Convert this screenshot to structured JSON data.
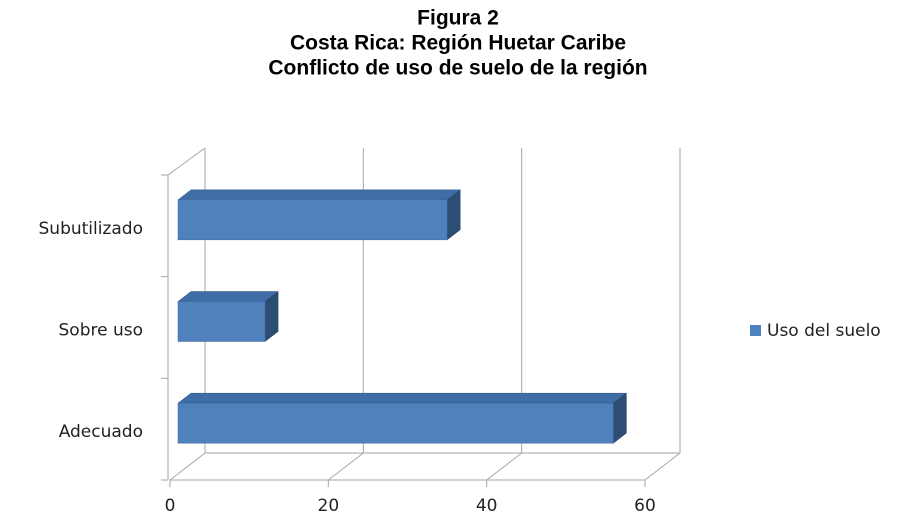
{
  "chart_data": {
    "type": "bar3d_horizontal",
    "title": [
      "Figura 2",
      "Costa Rica: Región Huetar Caribe",
      "Conflicto de uso de suelo de la región"
    ],
    "categories": [
      "Adecuado",
      "Sobre uso",
      "Subutilizado"
    ],
    "series": [
      {
        "name": "Uso del suelo",
        "color": "#4f81bd",
        "values": [
          55,
          11,
          34
        ]
      }
    ],
    "xlim": [
      0,
      60
    ],
    "xticks": [
      0,
      20,
      40,
      60
    ],
    "grid": true,
    "legend": "right"
  }
}
